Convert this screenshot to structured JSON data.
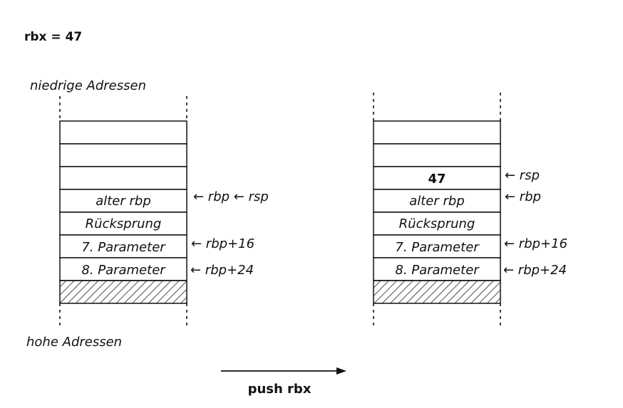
{
  "header": {
    "register_assignment": "rbx = 47"
  },
  "labels": {
    "low_addresses": "niedrige Adressen",
    "high_addresses": "hohe Adressen",
    "operation": "push rbx"
  },
  "left_stack": {
    "cells": [
      "",
      "",
      "",
      "alter rbp",
      "Rücksprung",
      "7. Parameter",
      "8. Parameter"
    ],
    "pointers": {
      "row3": "← rbp ← rsp",
      "row5": "← rbp+16",
      "row6": "← rbp+24"
    }
  },
  "right_stack": {
    "cells": [
      "",
      "",
      "47",
      "alter rbp",
      "Rücksprung",
      "7. Parameter",
      "8. Parameter"
    ],
    "pointers": {
      "row2": "← rsp",
      "row3": "← rbp",
      "row5": "← rbp+16",
      "row6": "← rbp+24"
    }
  },
  "colors": {
    "line": "#111111",
    "background": "#ffffff"
  }
}
